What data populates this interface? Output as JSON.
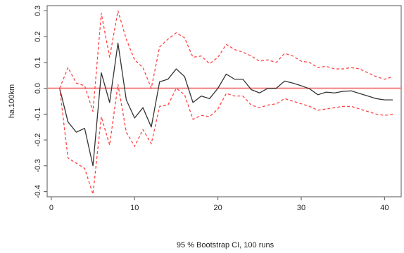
{
  "chart_data": {
    "type": "line",
    "xlabel": "",
    "ylabel": "ha.100km",
    "caption": "95 % Bootstrap CI, 100 runs",
    "xlim": [
      -0.5,
      42
    ],
    "ylim": [
      -0.42,
      0.32
    ],
    "x_ticks": [
      0,
      10,
      20,
      30,
      40
    ],
    "x_tick_labels": [
      "0",
      "10",
      "20",
      "30",
      "40"
    ],
    "y_ticks": [
      -0.4,
      -0.3,
      -0.2,
      -0.1,
      0.0,
      0.1,
      0.2,
      0.3
    ],
    "y_tick_labels": [
      "-0.4",
      "-0.3",
      "-0.2",
      "-0.1",
      "0.0",
      "0.1",
      "0.2",
      "0.3"
    ],
    "zero_line": {
      "y": 0,
      "color": "#f08080"
    },
    "x": [
      1,
      2,
      3,
      4,
      5,
      6,
      7,
      8,
      9,
      10,
      11,
      12,
      13,
      14,
      15,
      16,
      17,
      18,
      19,
      20,
      21,
      22,
      23,
      24,
      25,
      26,
      27,
      28,
      29,
      30,
      31,
      32,
      33,
      34,
      35,
      36,
      37,
      38,
      39,
      40,
      41
    ],
    "series": [
      {
        "role": "response",
        "color": "#333333",
        "dashed": false,
        "values": [
          0.0,
          -0.13,
          -0.17,
          -0.155,
          -0.3,
          0.06,
          -0.055,
          0.175,
          -0.045,
          -0.115,
          -0.075,
          -0.15,
          0.025,
          0.035,
          0.075,
          0.045,
          -0.055,
          -0.03,
          -0.04,
          0.0,
          0.055,
          0.035,
          0.035,
          -0.005,
          -0.018,
          0.0,
          0.0,
          0.028,
          0.02,
          0.01,
          -0.002,
          -0.025,
          -0.015,
          -0.018,
          -0.012,
          -0.01,
          -0.02,
          -0.03,
          -0.04,
          -0.045,
          -0.045
        ]
      },
      {
        "role": "upper-ci",
        "color": "#ff4444",
        "dashed": true,
        "values": [
          0.0,
          0.08,
          0.02,
          0.01,
          -0.09,
          0.29,
          0.12,
          0.3,
          0.19,
          0.11,
          0.08,
          0.0,
          0.16,
          0.19,
          0.215,
          0.195,
          0.12,
          0.125,
          0.095,
          0.12,
          0.17,
          0.15,
          0.14,
          0.125,
          0.105,
          0.11,
          0.1,
          0.135,
          0.125,
          0.105,
          0.1,
          0.08,
          0.085,
          0.075,
          0.075,
          0.08,
          0.075,
          0.06,
          0.045,
          0.035,
          0.045
        ]
      },
      {
        "role": "lower-ci",
        "color": "#ff4444",
        "dashed": true,
        "values": [
          0.0,
          -0.27,
          -0.29,
          -0.31,
          -0.41,
          -0.11,
          -0.22,
          0.015,
          -0.17,
          -0.225,
          -0.16,
          -0.215,
          -0.07,
          -0.065,
          0.0,
          -0.025,
          -0.12,
          -0.105,
          -0.11,
          -0.08,
          -0.02,
          -0.03,
          -0.03,
          -0.065,
          -0.075,
          -0.065,
          -0.06,
          -0.04,
          -0.05,
          -0.06,
          -0.07,
          -0.085,
          -0.08,
          -0.075,
          -0.07,
          -0.07,
          -0.08,
          -0.09,
          -0.1,
          -0.105,
          -0.1
        ]
      }
    ]
  }
}
